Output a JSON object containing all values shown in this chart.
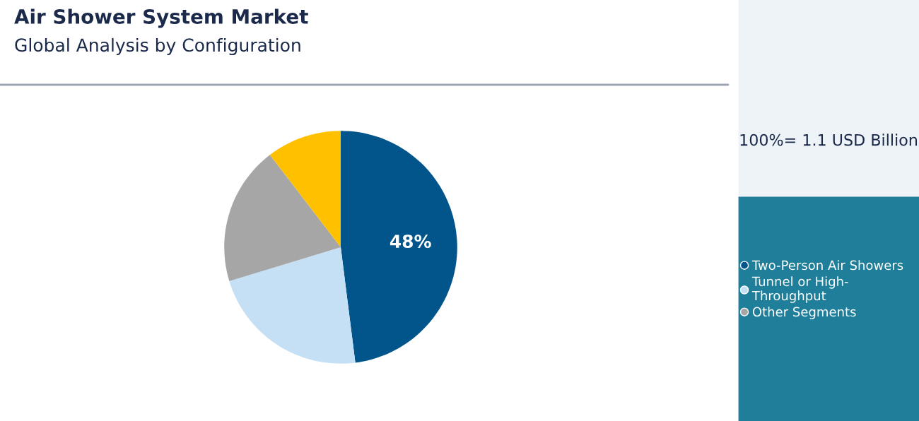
{
  "chart_data": {
    "type": "pie",
    "title": "Air Shower System Market",
    "subtitle": "Global Analysis by Configuration",
    "categories": [
      "Two-Person Air Showers",
      "Tunnel or High-Throughput",
      "Other Segments",
      null
    ],
    "values": [
      48,
      22.3,
      19.3,
      10.4
    ],
    "colors": [
      "#02558b",
      "#c5e0f4",
      "#a6a6a6",
      "#ffc000"
    ],
    "value_labels": [
      "48%",
      null,
      null,
      null
    ],
    "annotations": [
      "100%= 1.1 USD Billion"
    ],
    "legend": "right"
  }
}
